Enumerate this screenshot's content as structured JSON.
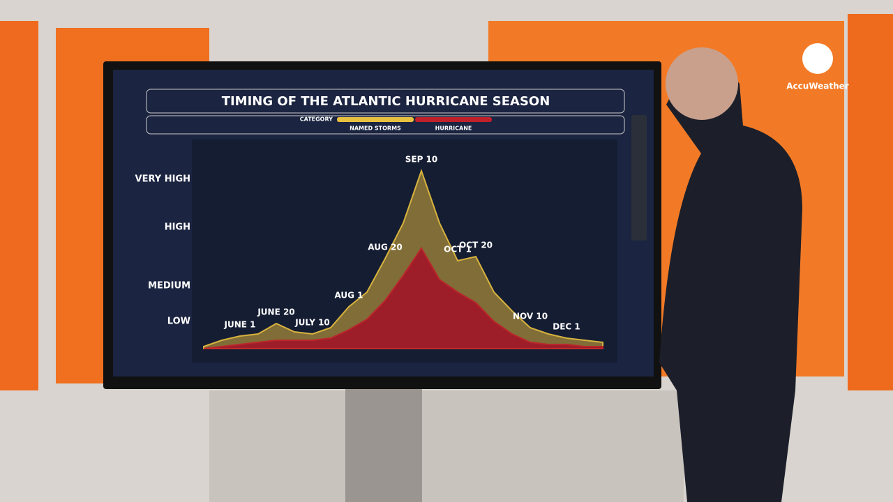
{
  "branding": "AccuWeather",
  "chart_data": {
    "type": "area",
    "title": "TIMING OF THE ATLANTIC HURRICANE SEASON",
    "legend_title": "CATEGORY",
    "categories": [
      null,
      null,
      "JUNE 1",
      null,
      "JUNE 20",
      null,
      "JULY 10",
      null,
      "AUG 1",
      null,
      "AUG 20",
      null,
      "SEP 10",
      null,
      "OCT 1",
      "OCT 20",
      null,
      null,
      "NOV 10",
      null,
      "DEC 1",
      null,
      null
    ],
    "series": [
      {
        "name": "NAMED STORMS",
        "color": "#e8c040",
        "fill": "#8a7438",
        "values": [
          1,
          4,
          6,
          7,
          12,
          8,
          7,
          10,
          20,
          27,
          43,
          60,
          85,
          60,
          42,
          44,
          27,
          18,
          10,
          7,
          5,
          4,
          3
        ]
      },
      {
        "name": "HURRICANE",
        "color": "#c0202a",
        "fill": "#a01828",
        "values": [
          0,
          1,
          2,
          3,
          4,
          4,
          4,
          5,
          9,
          14,
          23,
          35,
          48,
          33,
          27,
          22,
          13,
          7,
          3,
          2,
          2,
          1,
          1
        ]
      }
    ],
    "ylim": [
      0,
      100
    ],
    "yticks": [
      {
        "value": 13,
        "label": "LOW"
      },
      {
        "value": 30,
        "label": "MEDIUM"
      },
      {
        "value": 58,
        "label": "HIGH"
      },
      {
        "value": 81,
        "label": "VERY HIGH"
      }
    ]
  }
}
